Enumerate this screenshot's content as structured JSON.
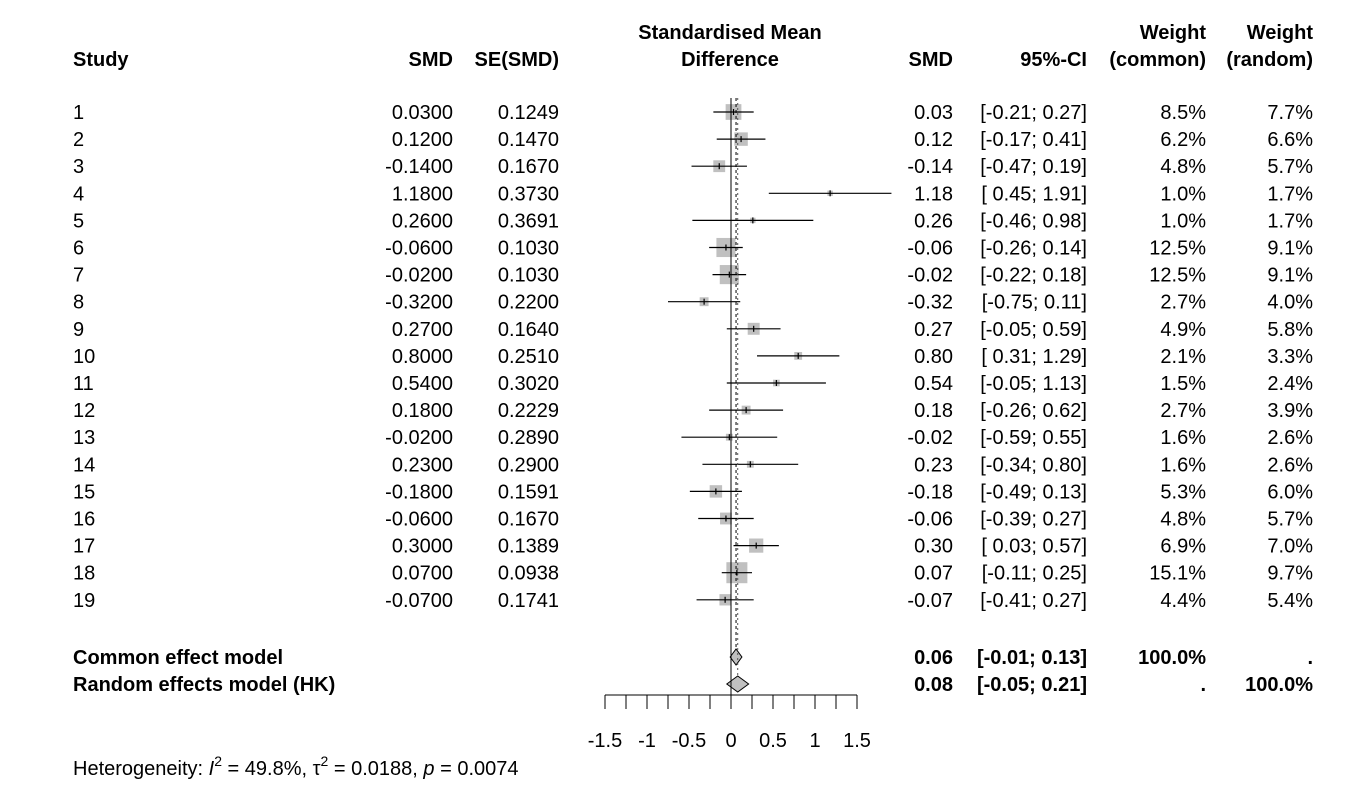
{
  "chart_data": {
    "type": "forest",
    "title": "Standardised Mean Difference",
    "columns": {
      "study": "Study",
      "smd_input": "SMD",
      "se": "SE(SMD)",
      "plot_title_line1": "Standardised Mean",
      "plot_title_line2": "Difference",
      "smd": "SMD",
      "ci": "95%-CI",
      "weight_common_line1": "Weight",
      "weight_common_line2": "(common)",
      "weight_random_line1": "Weight",
      "weight_random_line2": "(random)"
    },
    "studies": [
      {
        "study": "1",
        "smd_input": "0.0300",
        "se": "0.1249",
        "smd": "0.03",
        "ci": "[-0.21; 0.27]",
        "w_common": "8.5%",
        "w_random": "7.7%",
        "est": 0.03,
        "lo": -0.21,
        "hi": 0.27,
        "weight": 8.5
      },
      {
        "study": "2",
        "smd_input": "0.1200",
        "se": "0.1470",
        "smd": "0.12",
        "ci": "[-0.17; 0.41]",
        "w_common": "6.2%",
        "w_random": "6.6%",
        "est": 0.12,
        "lo": -0.17,
        "hi": 0.41,
        "weight": 6.2
      },
      {
        "study": "3",
        "smd_input": "-0.1400",
        "se": "0.1670",
        "smd": "-0.14",
        "ci": "[-0.47; 0.19]",
        "w_common": "4.8%",
        "w_random": "5.7%",
        "est": -0.14,
        "lo": -0.47,
        "hi": 0.19,
        "weight": 4.8
      },
      {
        "study": "4",
        "smd_input": "1.1800",
        "se": "0.3730",
        "smd": "1.18",
        "ci": "[ 0.45; 1.91]",
        "w_common": "1.0%",
        "w_random": "1.7%",
        "est": 1.18,
        "lo": 0.45,
        "hi": 1.91,
        "weight": 1.0
      },
      {
        "study": "5",
        "smd_input": "0.2600",
        "se": "0.3691",
        "smd": "0.26",
        "ci": "[-0.46; 0.98]",
        "w_common": "1.0%",
        "w_random": "1.7%",
        "est": 0.26,
        "lo": -0.46,
        "hi": 0.98,
        "weight": 1.0
      },
      {
        "study": "6",
        "smd_input": "-0.0600",
        "se": "0.1030",
        "smd": "-0.06",
        "ci": "[-0.26; 0.14]",
        "w_common": "12.5%",
        "w_random": "9.1%",
        "est": -0.06,
        "lo": -0.26,
        "hi": 0.14,
        "weight": 12.5
      },
      {
        "study": "7",
        "smd_input": "-0.0200",
        "se": "0.1030",
        "smd": "-0.02",
        "ci": "[-0.22; 0.18]",
        "w_common": "12.5%",
        "w_random": "9.1%",
        "est": -0.02,
        "lo": -0.22,
        "hi": 0.18,
        "weight": 12.5
      },
      {
        "study": "8",
        "smd_input": "-0.3200",
        "se": "0.2200",
        "smd": "-0.32",
        "ci": "[-0.75; 0.11]",
        "w_common": "2.7%",
        "w_random": "4.0%",
        "est": -0.32,
        "lo": -0.75,
        "hi": 0.11,
        "weight": 2.7
      },
      {
        "study": "9",
        "smd_input": "0.2700",
        "se": "0.1640",
        "smd": "0.27",
        "ci": "[-0.05; 0.59]",
        "w_common": "4.9%",
        "w_random": "5.8%",
        "est": 0.27,
        "lo": -0.05,
        "hi": 0.59,
        "weight": 4.9
      },
      {
        "study": "10",
        "smd_input": "0.8000",
        "se": "0.2510",
        "smd": "0.80",
        "ci": "[ 0.31; 1.29]",
        "w_common": "2.1%",
        "w_random": "3.3%",
        "est": 0.8,
        "lo": 0.31,
        "hi": 1.29,
        "weight": 2.1
      },
      {
        "study": "11",
        "smd_input": "0.5400",
        "se": "0.3020",
        "smd": "0.54",
        "ci": "[-0.05; 1.13]",
        "w_common": "1.5%",
        "w_random": "2.4%",
        "est": 0.54,
        "lo": -0.05,
        "hi": 1.13,
        "weight": 1.5
      },
      {
        "study": "12",
        "smd_input": "0.1800",
        "se": "0.2229",
        "smd": "0.18",
        "ci": "[-0.26; 0.62]",
        "w_common": "2.7%",
        "w_random": "3.9%",
        "est": 0.18,
        "lo": -0.26,
        "hi": 0.62,
        "weight": 2.7
      },
      {
        "study": "13",
        "smd_input": "-0.0200",
        "se": "0.2890",
        "smd": "-0.02",
        "ci": "[-0.59; 0.55]",
        "w_common": "1.6%",
        "w_random": "2.6%",
        "est": -0.02,
        "lo": -0.59,
        "hi": 0.55,
        "weight": 1.6
      },
      {
        "study": "14",
        "smd_input": "0.2300",
        "se": "0.2900",
        "smd": "0.23",
        "ci": "[-0.34; 0.80]",
        "w_common": "1.6%",
        "w_random": "2.6%",
        "est": 0.23,
        "lo": -0.34,
        "hi": 0.8,
        "weight": 1.6
      },
      {
        "study": "15",
        "smd_input": "-0.1800",
        "se": "0.1591",
        "smd": "-0.18",
        "ci": "[-0.49; 0.13]",
        "w_common": "5.3%",
        "w_random": "6.0%",
        "est": -0.18,
        "lo": -0.49,
        "hi": 0.13,
        "weight": 5.3
      },
      {
        "study": "16",
        "smd_input": "-0.0600",
        "se": "0.1670",
        "smd": "-0.06",
        "ci": "[-0.39; 0.27]",
        "w_common": "4.8%",
        "w_random": "5.7%",
        "est": -0.06,
        "lo": -0.39,
        "hi": 0.27,
        "weight": 4.8
      },
      {
        "study": "17",
        "smd_input": "0.3000",
        "se": "0.1389",
        "smd": "0.30",
        "ci": "[ 0.03; 0.57]",
        "w_common": "6.9%",
        "w_random": "7.0%",
        "est": 0.3,
        "lo": 0.03,
        "hi": 0.57,
        "weight": 6.9
      },
      {
        "study": "18",
        "smd_input": "0.0700",
        "se": "0.0938",
        "smd": "0.07",
        "ci": "[-0.11; 0.25]",
        "w_common": "15.1%",
        "w_random": "9.7%",
        "est": 0.07,
        "lo": -0.11,
        "hi": 0.25,
        "weight": 15.1
      },
      {
        "study": "19",
        "smd_input": "-0.0700",
        "se": "0.1741",
        "smd": "-0.07",
        "ci": "[-0.41; 0.27]",
        "w_common": "4.4%",
        "w_random": "5.4%",
        "est": -0.07,
        "lo": -0.41,
        "hi": 0.27,
        "weight": 4.4
      }
    ],
    "pooled": [
      {
        "label": "Common effect model",
        "smd": "0.06",
        "ci": "[-0.01; 0.13]",
        "w_common": "100.0%",
        "w_random": ".",
        "est": 0.06,
        "lo": -0.01,
        "hi": 0.13
      },
      {
        "label": "Random effects model (HK)",
        "smd": "0.08",
        "ci": "[-0.05; 0.21]",
        "w_common": ".",
        "w_random": "100.0%",
        "est": 0.08,
        "lo": -0.05,
        "hi": 0.21
      }
    ],
    "xaxis": {
      "range": [
        -1.5,
        1.5
      ],
      "ticks": [
        -1.5,
        -1,
        -0.5,
        0,
        0.5,
        1,
        1.5
      ],
      "tick_labels": [
        "-1.5",
        "-1",
        "-0.5",
        "0",
        "0.5",
        "1",
        "1.5"
      ],
      "reference_line": 0
    },
    "heterogeneity": {
      "prefix": "Heterogeneity: ",
      "i2_symbol": "I",
      "i2_sup": "2",
      "i2_value": " = 49.8%, ",
      "tau_symbol": "τ",
      "tau_sup": "2",
      "tau_value": " = 0.0188, ",
      "p_symbol": "p",
      "p_value": " = 0.0074"
    },
    "colors": {
      "square": "#c0c0c0",
      "diamond": "#c0c0c0",
      "line": "#000000"
    }
  }
}
